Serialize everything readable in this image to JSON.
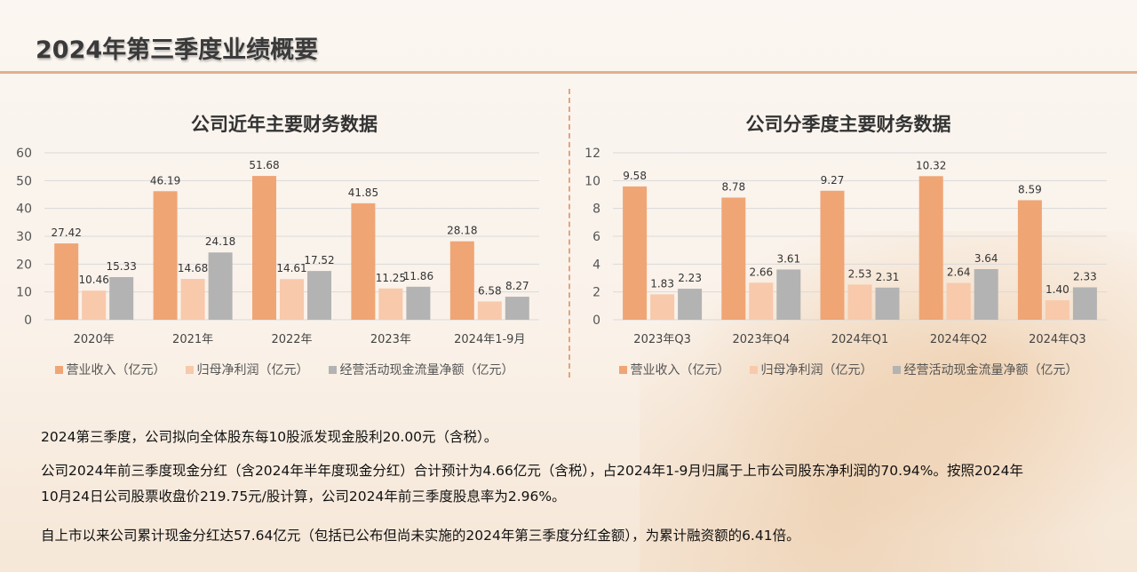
{
  "page": {
    "title": "2024年第三季度业绩概要"
  },
  "colors": {
    "revenue": "#f0a575",
    "profit": "#f8c9ab",
    "cashflow": "#b3b3b3",
    "accent": "#e2b08a"
  },
  "chart_data": [
    {
      "type": "bar",
      "title": "公司近年主要财务数据",
      "categories": [
        "2020年",
        "2021年",
        "2022年",
        "2023年",
        "2024年1-9月"
      ],
      "series": [
        {
          "name": "营业收入（亿元）",
          "values": [
            27.42,
            46.19,
            51.68,
            41.85,
            28.18
          ]
        },
        {
          "name": "归母净利润（亿元）",
          "values": [
            10.46,
            14.68,
            14.61,
            11.25,
            6.58
          ]
        },
        {
          "name": "经营活动现金流量净额（亿元）",
          "values": [
            15.33,
            24.18,
            17.52,
            11.86,
            8.27
          ]
        }
      ],
      "data_labels": [
        [
          "27.42",
          "46.19",
          "51.68",
          "41.85",
          "28.18"
        ],
        [
          "10.46",
          "14.68",
          "14.61",
          "11.25",
          "6.58"
        ],
        [
          "15.33",
          "24.18",
          "17.52",
          "11.86",
          "8.27"
        ]
      ],
      "ylim": [
        0,
        60
      ],
      "yticks": [
        "0",
        "10",
        "20",
        "30",
        "40",
        "50",
        "60"
      ],
      "grid": true,
      "legend": "bottom"
    },
    {
      "type": "bar",
      "title": "公司分季度主要财务数据",
      "categories": [
        "2023年Q3",
        "2023年Q4",
        "2024年Q1",
        "2024年Q2",
        "2024年Q3"
      ],
      "series": [
        {
          "name": "营业收入（亿元）",
          "values": [
            9.58,
            8.78,
            9.27,
            10.32,
            8.59
          ]
        },
        {
          "name": "归母净利润（亿元）",
          "values": [
            1.83,
            2.66,
            2.53,
            2.64,
            1.4
          ]
        },
        {
          "name": "经营活动现金流量净额（亿元）",
          "values": [
            2.23,
            3.61,
            2.31,
            3.64,
            2.33
          ]
        }
      ],
      "data_labels": [
        [
          "9.58",
          "8.78",
          "9.27",
          "10.32",
          "8.59"
        ],
        [
          "1.83",
          "2.66",
          "2.53",
          "2.64",
          "1.40"
        ],
        [
          "2.23",
          "3.61",
          "2.31",
          "3.64",
          "2.33"
        ]
      ],
      "ylim": [
        0,
        12
      ],
      "yticks": [
        "0",
        "2",
        "4",
        "6",
        "8",
        "10",
        "12"
      ],
      "grid": true,
      "legend": "bottom"
    }
  ],
  "text": {
    "p1": "2024第三季度，公司拟向全体股东每10股派发现金股利20.00元（含税）。",
    "p2_line1": "公司2024年前三季度现金分红（含2024年半年度现金分红）合计预计为4.66亿元（含税），占2024年1-9月归属于上市公司股东净利润的70.94%。按照2024年",
    "p2_line2": "10月24日公司股票收盘价219.75元/股计算，公司2024年前三季度股息率为2.96%。",
    "p3": "自上市以来公司累计现金分红达57.64亿元（包括已公布但尚未实施的2024年第三季度分红金额），为累计融资额的6.41倍。"
  }
}
